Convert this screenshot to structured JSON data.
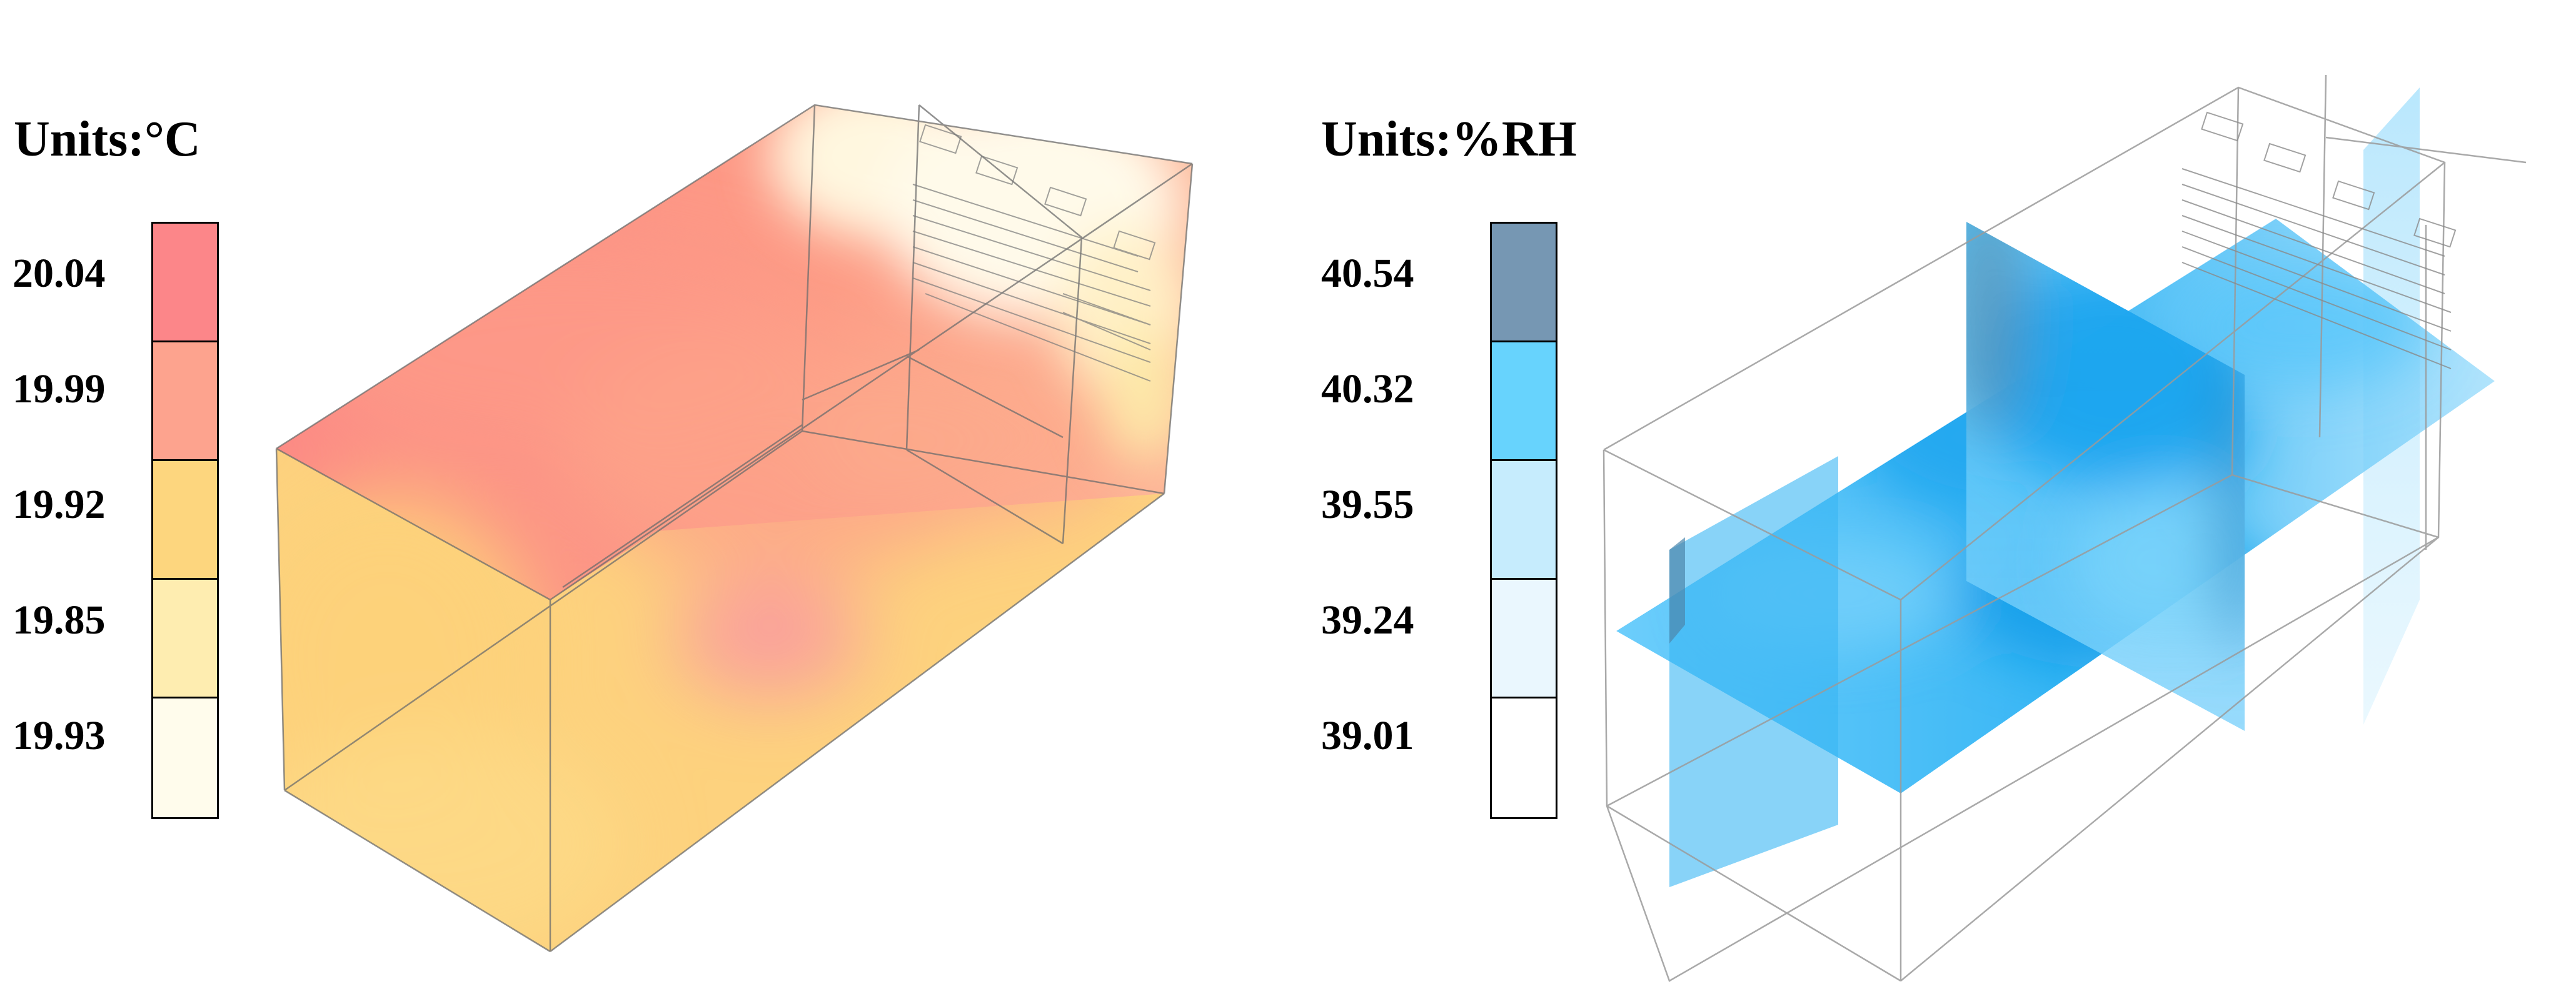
{
  "panels": [
    {
      "units": "Units:°C",
      "legend": [
        {
          "label": "20.04",
          "color": "#fc8689"
        },
        {
          "label": "19.99",
          "color": "#fda38e"
        },
        {
          "label": "19.92",
          "color": "#fdd67e"
        },
        {
          "label": "19.85",
          "color": "#feedb0"
        },
        {
          "label": "19.93",
          "color": "#fffcec"
        }
      ]
    },
    {
      "units": "Units:%RH",
      "legend": [
        {
          "label": "40.54",
          "color": "#7697b3"
        },
        {
          "label": "40.32",
          "color": "#67d3fd"
        },
        {
          "label": "39.55",
          "color": "#c6ecfd"
        },
        {
          "label": "39.24",
          "color": "#eaf7fe"
        },
        {
          "label": "39.01",
          "color": "#ffffff"
        }
      ]
    }
  ]
}
